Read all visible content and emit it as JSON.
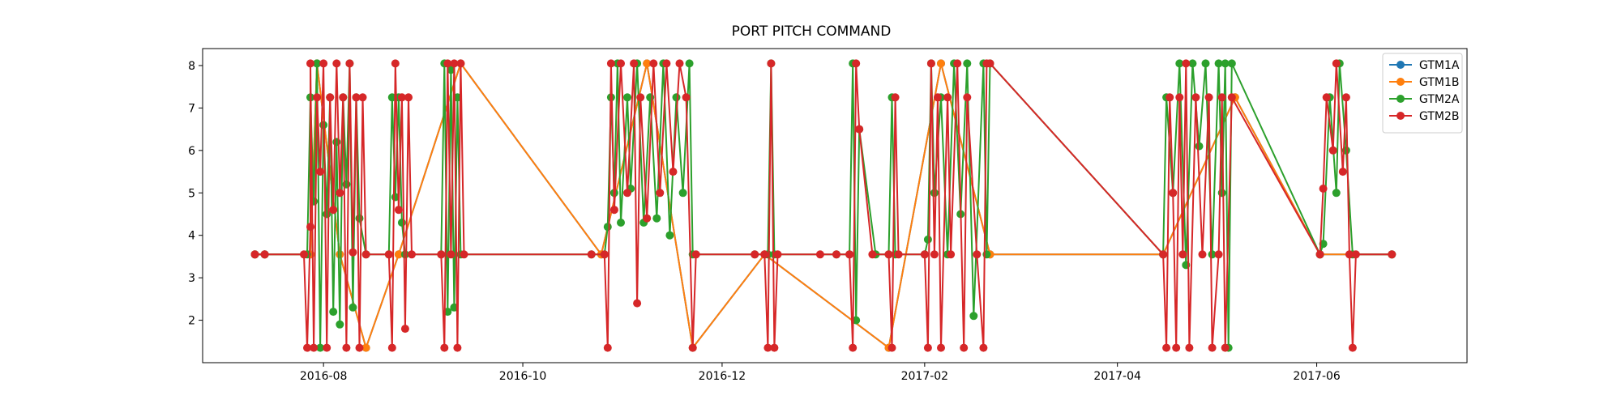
{
  "chart_data": {
    "type": "line",
    "title": "PORT PITCH COMMAND",
    "xlabel": "",
    "ylabel": "",
    "x_axis_type": "date",
    "xlim": [
      "2016-06-25",
      "2017-07-17"
    ],
    "ylim": [
      1.0,
      8.4
    ],
    "x_ticks": [
      "2016-08",
      "2016-10",
      "2016-12",
      "2017-02",
      "2017-04",
      "2017-06"
    ],
    "y_ticks": [
      2,
      3,
      4,
      5,
      6,
      7,
      8
    ],
    "grid": false,
    "legend_position": "top-right",
    "markers": "circle",
    "series": [
      {
        "name": "GTM1A",
        "color": "#1f77b4",
        "points": [
          [
            "2016-07-11",
            3.55
          ],
          [
            "2016-07-14",
            3.55
          ],
          [
            "2016-07-28",
            3.55
          ],
          [
            "2016-07-30",
            8.05
          ],
          [
            "2016-08-06",
            3.55
          ],
          [
            "2016-08-14",
            1.35
          ],
          [
            "2016-08-24",
            3.55
          ],
          [
            "2016-09-12",
            8.05
          ],
          [
            "2016-10-25",
            3.55
          ],
          [
            "2016-11-08",
            8.05
          ],
          [
            "2016-11-22",
            1.35
          ],
          [
            "2016-12-14",
            3.55
          ],
          [
            "2017-01-21",
            1.35
          ],
          [
            "2017-02-06",
            8.05
          ],
          [
            "2017-02-21",
            3.55
          ],
          [
            "2017-04-15",
            3.55
          ],
          [
            "2017-05-07",
            7.25
          ],
          [
            "2017-06-02",
            3.55
          ],
          [
            "2017-06-24",
            3.55
          ]
        ]
      },
      {
        "name": "GTM1B",
        "color": "#ff7f0e",
        "points": [
          [
            "2016-07-11",
            3.55
          ],
          [
            "2016-07-14",
            3.55
          ],
          [
            "2016-07-28",
            3.55
          ],
          [
            "2016-07-30",
            8.05
          ],
          [
            "2016-08-06",
            3.55
          ],
          [
            "2016-08-14",
            1.35
          ],
          [
            "2016-08-24",
            3.55
          ],
          [
            "2016-09-12",
            8.05
          ],
          [
            "2016-10-25",
            3.55
          ],
          [
            "2016-11-08",
            8.05
          ],
          [
            "2016-11-22",
            1.35
          ],
          [
            "2016-12-14",
            3.55
          ],
          [
            "2017-01-21",
            1.35
          ],
          [
            "2017-02-06",
            8.05
          ],
          [
            "2017-02-21",
            3.55
          ],
          [
            "2017-04-15",
            3.55
          ],
          [
            "2017-05-07",
            7.25
          ],
          [
            "2017-06-02",
            3.55
          ],
          [
            "2017-06-24",
            3.55
          ]
        ]
      },
      {
        "name": "GTM2A",
        "color": "#2ca02c",
        "points": [
          [
            "2016-07-11",
            3.55
          ],
          [
            "2016-07-14",
            3.55
          ],
          [
            "2016-07-27",
            3.55
          ],
          [
            "2016-07-28",
            7.25
          ],
          [
            "2016-07-29",
            4.8
          ],
          [
            "2016-07-30",
            8.05
          ],
          [
            "2016-07-31",
            1.35
          ],
          [
            "2016-08-01",
            6.6
          ],
          [
            "2016-08-02",
            4.5
          ],
          [
            "2016-08-03",
            7.25
          ],
          [
            "2016-08-04",
            2.2
          ],
          [
            "2016-08-05",
            6.2
          ],
          [
            "2016-08-06",
            1.9
          ],
          [
            "2016-08-07",
            7.25
          ],
          [
            "2016-08-08",
            5.2
          ],
          [
            "2016-08-09",
            8.05
          ],
          [
            "2016-08-10",
            2.3
          ],
          [
            "2016-08-11",
            7.25
          ],
          [
            "2016-08-12",
            4.4
          ],
          [
            "2016-08-14",
            3.55
          ],
          [
            "2016-08-21",
            3.55
          ],
          [
            "2016-08-22",
            7.25
          ],
          [
            "2016-08-23",
            4.9
          ],
          [
            "2016-08-24",
            7.25
          ],
          [
            "2016-08-25",
            4.3
          ],
          [
            "2016-08-26",
            3.55
          ],
          [
            "2016-09-06",
            3.55
          ],
          [
            "2016-09-07",
            8.05
          ],
          [
            "2016-09-08",
            2.2
          ],
          [
            "2016-09-09",
            7.9
          ],
          [
            "2016-09-10",
            2.3
          ],
          [
            "2016-09-11",
            7.25
          ],
          [
            "2016-09-12",
            3.55
          ],
          [
            "2016-10-22",
            3.55
          ],
          [
            "2016-10-26",
            3.55
          ],
          [
            "2016-10-27",
            4.2
          ],
          [
            "2016-10-28",
            7.25
          ],
          [
            "2016-10-29",
            5.0
          ],
          [
            "2016-10-30",
            8.05
          ],
          [
            "2016-10-31",
            4.3
          ],
          [
            "2016-11-02",
            7.25
          ],
          [
            "2016-11-03",
            5.1
          ],
          [
            "2016-11-05",
            8.05
          ],
          [
            "2016-11-07",
            4.3
          ],
          [
            "2016-11-09",
            7.25
          ],
          [
            "2016-11-11",
            4.4
          ],
          [
            "2016-11-13",
            8.05
          ],
          [
            "2016-11-15",
            4.0
          ],
          [
            "2016-11-17",
            7.25
          ],
          [
            "2016-11-19",
            5.0
          ],
          [
            "2016-11-21",
            8.05
          ],
          [
            "2016-11-22",
            3.55
          ],
          [
            "2016-12-11",
            3.55
          ],
          [
            "2016-12-15",
            3.55
          ],
          [
            "2016-12-16",
            8.05
          ],
          [
            "2016-12-17",
            3.55
          ],
          [
            "2017-01-05",
            3.55
          ],
          [
            "2017-01-09",
            3.55
          ],
          [
            "2017-01-10",
            8.05
          ],
          [
            "2017-01-11",
            2.0
          ],
          [
            "2017-01-12",
            6.5
          ],
          [
            "2017-01-17",
            3.55
          ],
          [
            "2017-01-21",
            3.55
          ],
          [
            "2017-01-22",
            7.25
          ],
          [
            "2017-01-23",
            3.55
          ],
          [
            "2017-02-01",
            3.55
          ],
          [
            "2017-02-02",
            3.9
          ],
          [
            "2017-02-03",
            8.05
          ],
          [
            "2017-02-04",
            5.0
          ],
          [
            "2017-02-06",
            7.25
          ],
          [
            "2017-02-08",
            3.55
          ],
          [
            "2017-02-10",
            8.05
          ],
          [
            "2017-02-12",
            4.5
          ],
          [
            "2017-02-14",
            8.05
          ],
          [
            "2017-02-16",
            2.1
          ],
          [
            "2017-02-19",
            8.05
          ],
          [
            "2017-02-20",
            3.55
          ],
          [
            "2017-02-21",
            8.05
          ],
          [
            "2017-04-15",
            3.55
          ],
          [
            "2017-04-16",
            7.25
          ],
          [
            "2017-04-18",
            5.0
          ],
          [
            "2017-04-20",
            8.05
          ],
          [
            "2017-04-22",
            3.3
          ],
          [
            "2017-04-24",
            8.05
          ],
          [
            "2017-04-26",
            6.1
          ],
          [
            "2017-04-28",
            8.05
          ],
          [
            "2017-04-30",
            3.55
          ],
          [
            "2017-05-02",
            8.05
          ],
          [
            "2017-05-03",
            5.0
          ],
          [
            "2017-05-04",
            8.05
          ],
          [
            "2017-05-05",
            1.35
          ],
          [
            "2017-05-06",
            8.05
          ],
          [
            "2017-06-02",
            3.55
          ],
          [
            "2017-06-03",
            3.8
          ],
          [
            "2017-06-05",
            7.25
          ],
          [
            "2017-06-07",
            5.0
          ],
          [
            "2017-06-08",
            8.05
          ],
          [
            "2017-06-10",
            6.0
          ],
          [
            "2017-06-12",
            3.55
          ],
          [
            "2017-06-24",
            3.55
          ]
        ]
      },
      {
        "name": "GTM2B",
        "color": "#d62728",
        "points": [
          [
            "2016-07-11",
            3.55
          ],
          [
            "2016-07-14",
            3.55
          ],
          [
            "2016-07-26",
            3.55
          ],
          [
            "2016-07-27",
            1.35
          ],
          [
            "2016-07-28",
            4.2
          ],
          [
            "2016-07-28",
            8.05
          ],
          [
            "2016-07-29",
            1.35
          ],
          [
            "2016-07-30",
            7.25
          ],
          [
            "2016-07-31",
            5.5
          ],
          [
            "2016-08-01",
            8.05
          ],
          [
            "2016-08-02",
            1.35
          ],
          [
            "2016-08-03",
            7.25
          ],
          [
            "2016-08-04",
            4.6
          ],
          [
            "2016-08-05",
            8.05
          ],
          [
            "2016-08-06",
            5.0
          ],
          [
            "2016-08-07",
            7.25
          ],
          [
            "2016-08-08",
            1.35
          ],
          [
            "2016-08-09",
            8.05
          ],
          [
            "2016-08-10",
            3.6
          ],
          [
            "2016-08-11",
            7.25
          ],
          [
            "2016-08-12",
            1.35
          ],
          [
            "2016-08-13",
            7.25
          ],
          [
            "2016-08-14",
            3.55
          ],
          [
            "2016-08-21",
            3.55
          ],
          [
            "2016-08-22",
            1.35
          ],
          [
            "2016-08-23",
            8.05
          ],
          [
            "2016-08-24",
            4.6
          ],
          [
            "2016-08-25",
            7.25
          ],
          [
            "2016-08-26",
            1.8
          ],
          [
            "2016-08-27",
            7.25
          ],
          [
            "2016-08-28",
            3.55
          ],
          [
            "2016-09-06",
            3.55
          ],
          [
            "2016-09-07",
            1.35
          ],
          [
            "2016-09-08",
            8.05
          ],
          [
            "2016-09-09",
            3.55
          ],
          [
            "2016-09-10",
            8.05
          ],
          [
            "2016-09-11",
            1.35
          ],
          [
            "2016-09-12",
            8.05
          ],
          [
            "2016-09-13",
            3.55
          ],
          [
            "2016-10-22",
            3.55
          ],
          [
            "2016-10-26",
            3.55
          ],
          [
            "2016-10-27",
            1.35
          ],
          [
            "2016-10-28",
            8.05
          ],
          [
            "2016-10-29",
            4.6
          ],
          [
            "2016-10-31",
            8.05
          ],
          [
            "2016-11-02",
            5.0
          ],
          [
            "2016-11-04",
            8.05
          ],
          [
            "2016-11-05",
            2.4
          ],
          [
            "2016-11-06",
            7.25
          ],
          [
            "2016-11-08",
            4.4
          ],
          [
            "2016-11-10",
            8.05
          ],
          [
            "2016-11-12",
            5.0
          ],
          [
            "2016-11-14",
            8.05
          ],
          [
            "2016-11-16",
            5.5
          ],
          [
            "2016-11-18",
            8.05
          ],
          [
            "2016-11-20",
            7.25
          ],
          [
            "2016-11-22",
            1.35
          ],
          [
            "2016-11-23",
            3.55
          ],
          [
            "2016-12-11",
            3.55
          ],
          [
            "2016-12-14",
            3.55
          ],
          [
            "2016-12-15",
            1.35
          ],
          [
            "2016-12-16",
            8.05
          ],
          [
            "2016-12-17",
            1.35
          ],
          [
            "2016-12-18",
            3.55
          ],
          [
            "2016-12-31",
            3.55
          ],
          [
            "2017-01-05",
            3.55
          ],
          [
            "2017-01-09",
            3.55
          ],
          [
            "2017-01-10",
            1.35
          ],
          [
            "2017-01-11",
            8.05
          ],
          [
            "2017-01-12",
            6.5
          ],
          [
            "2017-01-16",
            3.55
          ],
          [
            "2017-01-21",
            3.55
          ],
          [
            "2017-01-22",
            1.35
          ],
          [
            "2017-01-23",
            7.25
          ],
          [
            "2017-01-24",
            3.55
          ],
          [
            "2017-02-01",
            3.55
          ],
          [
            "2017-02-02",
            1.35
          ],
          [
            "2017-02-03",
            8.05
          ],
          [
            "2017-02-04",
            3.55
          ],
          [
            "2017-02-05",
            7.25
          ],
          [
            "2017-02-06",
            1.35
          ],
          [
            "2017-02-08",
            7.25
          ],
          [
            "2017-02-09",
            3.55
          ],
          [
            "2017-02-11",
            8.05
          ],
          [
            "2017-02-13",
            1.35
          ],
          [
            "2017-02-14",
            7.25
          ],
          [
            "2017-02-17",
            3.55
          ],
          [
            "2017-02-19",
            1.35
          ],
          [
            "2017-02-20",
            8.05
          ],
          [
            "2017-02-21",
            8.05
          ],
          [
            "2017-04-15",
            3.55
          ],
          [
            "2017-04-16",
            1.35
          ],
          [
            "2017-04-17",
            7.25
          ],
          [
            "2017-04-18",
            5.0
          ],
          [
            "2017-04-19",
            1.35
          ],
          [
            "2017-04-20",
            7.25
          ],
          [
            "2017-04-21",
            3.55
          ],
          [
            "2017-04-22",
            8.05
          ],
          [
            "2017-04-23",
            1.35
          ],
          [
            "2017-04-25",
            7.25
          ],
          [
            "2017-04-27",
            3.55
          ],
          [
            "2017-04-29",
            7.25
          ],
          [
            "2017-04-30",
            1.35
          ],
          [
            "2017-05-02",
            3.55
          ],
          [
            "2017-05-03",
            7.25
          ],
          [
            "2017-05-04",
            1.35
          ],
          [
            "2017-05-06",
            7.25
          ],
          [
            "2017-06-02",
            3.55
          ],
          [
            "2017-06-03",
            5.1
          ],
          [
            "2017-06-04",
            7.25
          ],
          [
            "2017-06-06",
            6.0
          ],
          [
            "2017-06-07",
            8.05
          ],
          [
            "2017-06-09",
            5.5
          ],
          [
            "2017-06-10",
            7.25
          ],
          [
            "2017-06-11",
            3.55
          ],
          [
            "2017-06-12",
            1.35
          ],
          [
            "2017-06-13",
            3.55
          ],
          [
            "2017-06-24",
            3.55
          ]
        ]
      }
    ]
  }
}
